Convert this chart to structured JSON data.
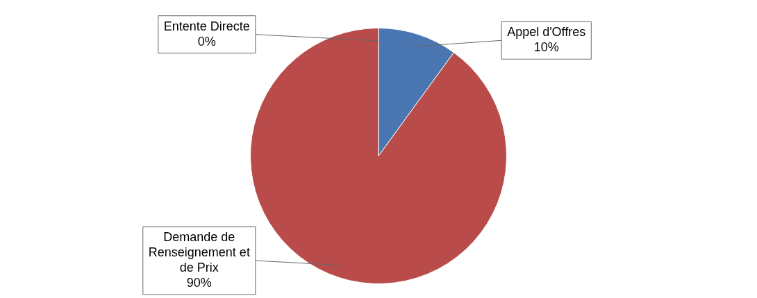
{
  "chart_data": {
    "type": "pie",
    "categories": [
      "Entente Directe",
      "Appel d'Offres",
      "Demande de Renseignement et de Prix"
    ],
    "values": [
      0,
      10,
      90
    ],
    "colors": [
      "#9bbb59",
      "#4a76b2",
      "#b94c4a"
    ],
    "value_labels": [
      "0%",
      "10%",
      "90%"
    ],
    "legend": false
  }
}
